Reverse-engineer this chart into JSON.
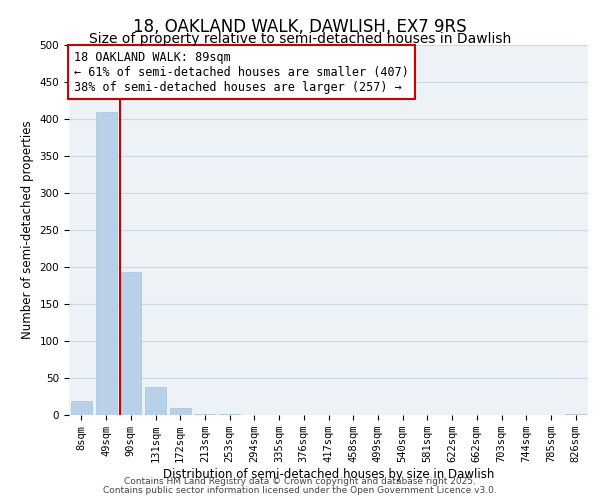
{
  "title": "18, OAKLAND WALK, DAWLISH, EX7 9RS",
  "subtitle": "Size of property relative to semi-detached houses in Dawlish",
  "bar_labels": [
    "8sqm",
    "49sqm",
    "90sqm",
    "131sqm",
    "172sqm",
    "213sqm",
    "253sqm",
    "294sqm",
    "335sqm",
    "376sqm",
    "417sqm",
    "458sqm",
    "499sqm",
    "540sqm",
    "581sqm",
    "622sqm",
    "662sqm",
    "703sqm",
    "744sqm",
    "785sqm",
    "826sqm"
  ],
  "bar_values": [
    19,
    410,
    193,
    38,
    9,
    2,
    1,
    0,
    0,
    0,
    0,
    0,
    0,
    0,
    0,
    0,
    0,
    0,
    0,
    0,
    1
  ],
  "bar_color": "#b8d0e8",
  "bar_edge_color": "#a8c4dc",
  "highlight_line_color": "#cc0000",
  "annotation_box_text": "18 OAKLAND WALK: 89sqm\n← 61% of semi-detached houses are smaller (407)\n38% of semi-detached houses are larger (257) →",
  "annotation_box_color": "#cc0000",
  "xlabel": "Distribution of semi-detached houses by size in Dawlish",
  "ylabel": "Number of semi-detached properties",
  "ylim": [
    0,
    500
  ],
  "yticks": [
    0,
    50,
    100,
    150,
    200,
    250,
    300,
    350,
    400,
    450,
    500
  ],
  "grid_color": "#cdd8e3",
  "background_color": "#edf2f7",
  "footer_line1": "Contains HM Land Registry data © Crown copyright and database right 2025.",
  "footer_line2": "Contains public sector information licensed under the Open Government Licence v3.0.",
  "title_fontsize": 12,
  "subtitle_fontsize": 10,
  "axis_label_fontsize": 8.5,
  "tick_fontsize": 7.5,
  "annotation_fontsize": 8.5,
  "footer_fontsize": 6.5
}
